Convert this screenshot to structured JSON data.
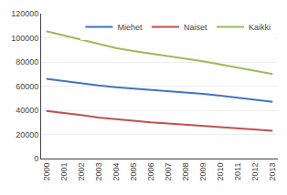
{
  "chart_data": {
    "type": "line",
    "x": [
      2000,
      2001,
      2002,
      2003,
      2004,
      2005,
      2006,
      2007,
      2008,
      2009,
      2010,
      2011,
      2012,
      2013
    ],
    "series": [
      {
        "name": "Miehet",
        "color": "#4472C4",
        "values": [
          66000,
          64000,
          62000,
          60500,
          59000,
          58000,
          57000,
          56000,
          55000,
          53500,
          52000,
          50500,
          48500,
          47000
        ]
      },
      {
        "name": "Naiset",
        "color": "#C0504D",
        "values": [
          39500,
          38000,
          36000,
          34000,
          32500,
          31000,
          30000,
          29000,
          28000,
          27000,
          26000,
          25000,
          24000,
          23000
        ]
      },
      {
        "name": "Kaikki",
        "color": "#9BBB59",
        "values": [
          105500,
          102000,
          98000,
          94500,
          91500,
          89000,
          87000,
          85000,
          83000,
          80500,
          78000,
          75500,
          72500,
          70000
        ]
      }
    ],
    "xlim": [
      1999.7,
      2013.3
    ],
    "xticks": [
      2000,
      2001,
      2002,
      2003,
      2004,
      2005,
      2006,
      2007,
      2008,
      2009,
      2010,
      2011,
      2012,
      2013
    ],
    "ylim": [
      0,
      120000
    ],
    "yticks": [
      0,
      20000,
      40000,
      60000,
      80000,
      100000,
      120000
    ],
    "grid": true,
    "legend": "upper right"
  }
}
